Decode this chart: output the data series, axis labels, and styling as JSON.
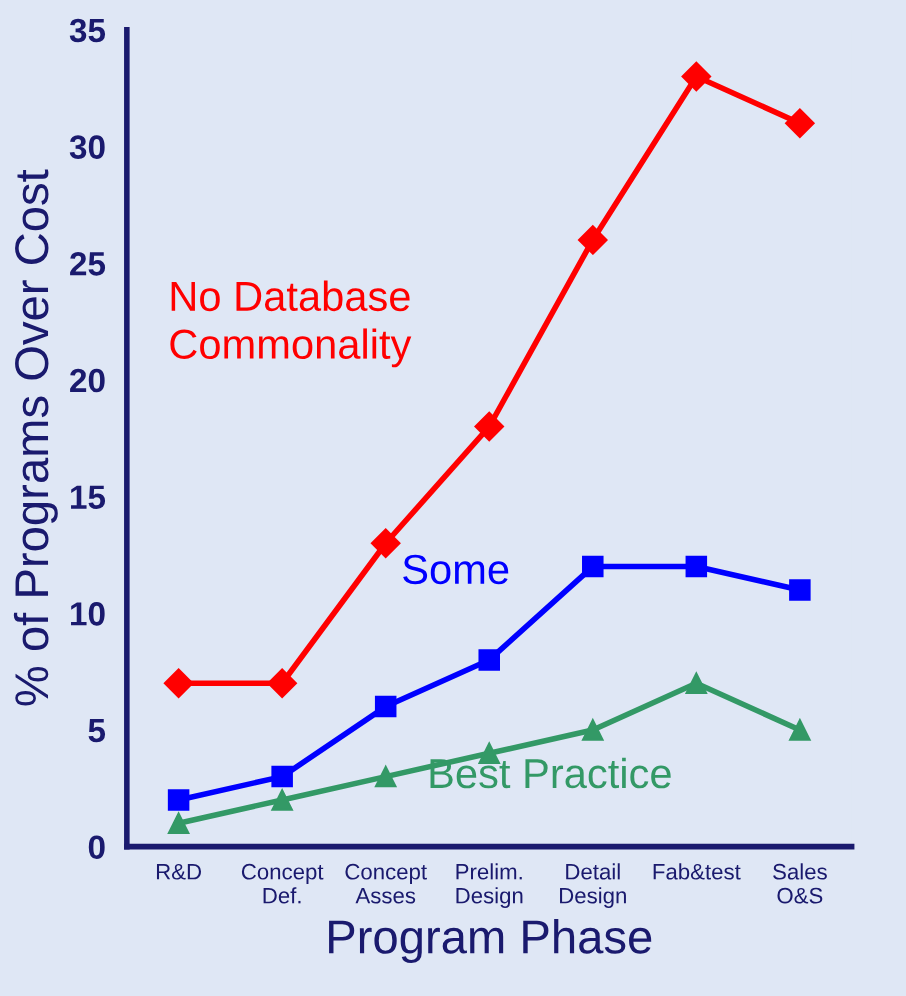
{
  "chart_data": {
    "type": "line",
    "xlabel": "Program Phase",
    "ylabel": "% of Programs Over Cost",
    "categories": [
      "R&D",
      "Concept\nDef.",
      "Concept\nAsses",
      "Prelim.\nDesign",
      "Detail\nDesign",
      "Fab&test",
      "Sales\nO&S"
    ],
    "series": [
      {
        "name": "No Database\nCommonality",
        "color": "#ff0000",
        "marker": "diamond",
        "values": [
          7,
          7,
          13,
          18,
          26,
          33,
          31
        ]
      },
      {
        "name": "Some",
        "color": "#0000ff",
        "marker": "square",
        "values": [
          2,
          3,
          6,
          8,
          12,
          12,
          11
        ]
      },
      {
        "name": "Best Practice",
        "color": "#339966",
        "marker": "triangle",
        "values": [
          1,
          2,
          3,
          4,
          5,
          7,
          5
        ]
      }
    ],
    "ylim": [
      0,
      35
    ],
    "yticks": [
      0,
      5,
      10,
      15,
      20,
      25,
      30,
      35
    ],
    "grid": false,
    "legend": false,
    "line_style": "solid"
  }
}
